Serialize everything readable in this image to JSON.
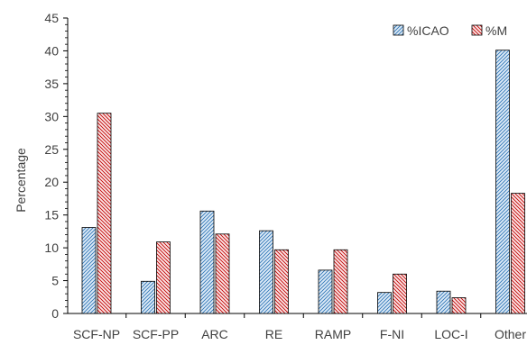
{
  "chart_data": {
    "type": "bar",
    "title": "",
    "xlabel": "",
    "ylabel": "Percentage",
    "ylim": [
      0,
      45
    ],
    "yticks": [
      0,
      5,
      10,
      15,
      20,
      25,
      30,
      35,
      40,
      45
    ],
    "grid": false,
    "legend_position": "top-right",
    "categories": [
      "SCF-NP",
      "SCF-PP",
      "ARC",
      "RE",
      "RAMP",
      "F-NI",
      "LOC-I",
      "Other"
    ],
    "series": [
      {
        "name": "%ICAO",
        "color": "#2e75b6",
        "fill": "#deebf7",
        "pattern": "diagonal-hatch",
        "values": [
          13.1,
          4.9,
          15.6,
          12.6,
          6.6,
          3.2,
          3.4,
          40.1
        ]
      },
      {
        "name": "%M",
        "color": "#c00000",
        "fill": "#fbe5e5",
        "pattern": "diagonal-hatch",
        "values": [
          30.5,
          10.9,
          12.1,
          9.7,
          9.7,
          6.0,
          2.4,
          18.3
        ]
      }
    ]
  }
}
